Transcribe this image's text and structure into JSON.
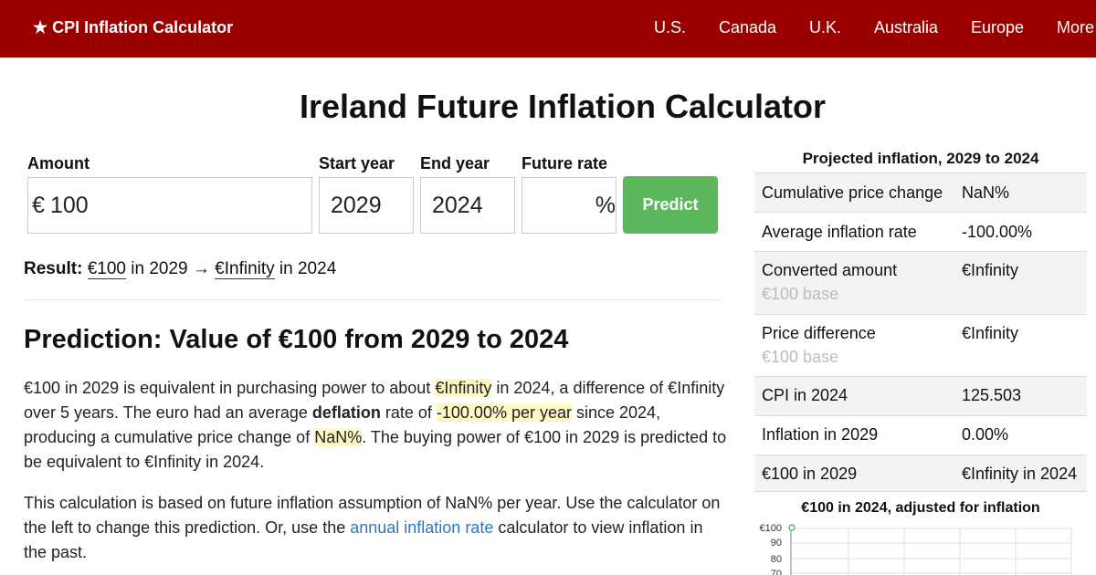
{
  "header": {
    "brand": "★ CPI Inflation Calculator",
    "nav": [
      "U.S.",
      "Canada",
      "U.K.",
      "Australia",
      "Europe",
      "More"
    ]
  },
  "page_title": "Ireland Future Inflation Calculator",
  "form": {
    "amount_label": "Amount",
    "currency_symbol": "€",
    "amount_value": "100",
    "start_year_label": "Start year",
    "start_year_value": "2029",
    "end_year_label": "End year",
    "end_year_value": "2024",
    "future_rate_label": "Future rate",
    "future_rate_value": "",
    "percent_symbol": "%",
    "predict_label": "Predict"
  },
  "result": {
    "label": "Result:",
    "from_amount": "€100",
    "from_year_text": "in 2029",
    "arrow": "→",
    "to_amount": "€Infinity",
    "to_year_text": "in 2024"
  },
  "prediction": {
    "heading": "Prediction: Value of €100 from 2029 to 2024",
    "p1": {
      "t1": "€100 in 2029 is equivalent in purchasing power to about ",
      "h1": "€Infinity",
      "t2": " in 2024, a difference of €Infinity over 5 years. The euro had an average ",
      "b1": "deflation",
      "t3": " rate of ",
      "h2": "-100.00% per year",
      "t4": " since 2024, producing a cumulative price change of ",
      "h3": "NaN%",
      "t5": ". The buying power of €100 in 2029 is predicted to be equivalent to €Infinity in 2024."
    },
    "p2": {
      "t1": "This calculation is based on future inflation assumption of NaN% per year. Use the calculator on the left to change this prediction. Or, use the ",
      "link": "annual inflation rate",
      "t2": " calculator to view inflation in the past."
    }
  },
  "summary": {
    "title": "Projected inflation, 2029 to 2024",
    "rows": [
      {
        "label": "Cumulative price change",
        "value": "NaN%",
        "sub": ""
      },
      {
        "label": "Average inflation rate",
        "value": "-100.00%",
        "sub": ""
      },
      {
        "label": "Converted amount",
        "value": "€Infinity",
        "sub": "€100 base"
      },
      {
        "label": "Price difference",
        "value": "€Infinity",
        "sub": "€100 base"
      },
      {
        "label": "CPI in 2024",
        "value": "125.503",
        "sub": ""
      },
      {
        "label": "Inflation in 2029",
        "value": "0.00%",
        "sub": ""
      },
      {
        "label": "€100 in 2029",
        "value": "€Infinity in 2024",
        "sub": ""
      }
    ]
  },
  "chart_data": {
    "type": "line",
    "title": "€100 in 2024, adjusted for inflation",
    "y_ticks": [
      "€100",
      "90",
      "80",
      "70"
    ],
    "ylim": [
      70,
      100
    ],
    "series": [
      {
        "values": [
          100
        ]
      }
    ],
    "line_color": "#5cb85c",
    "grid": true
  }
}
